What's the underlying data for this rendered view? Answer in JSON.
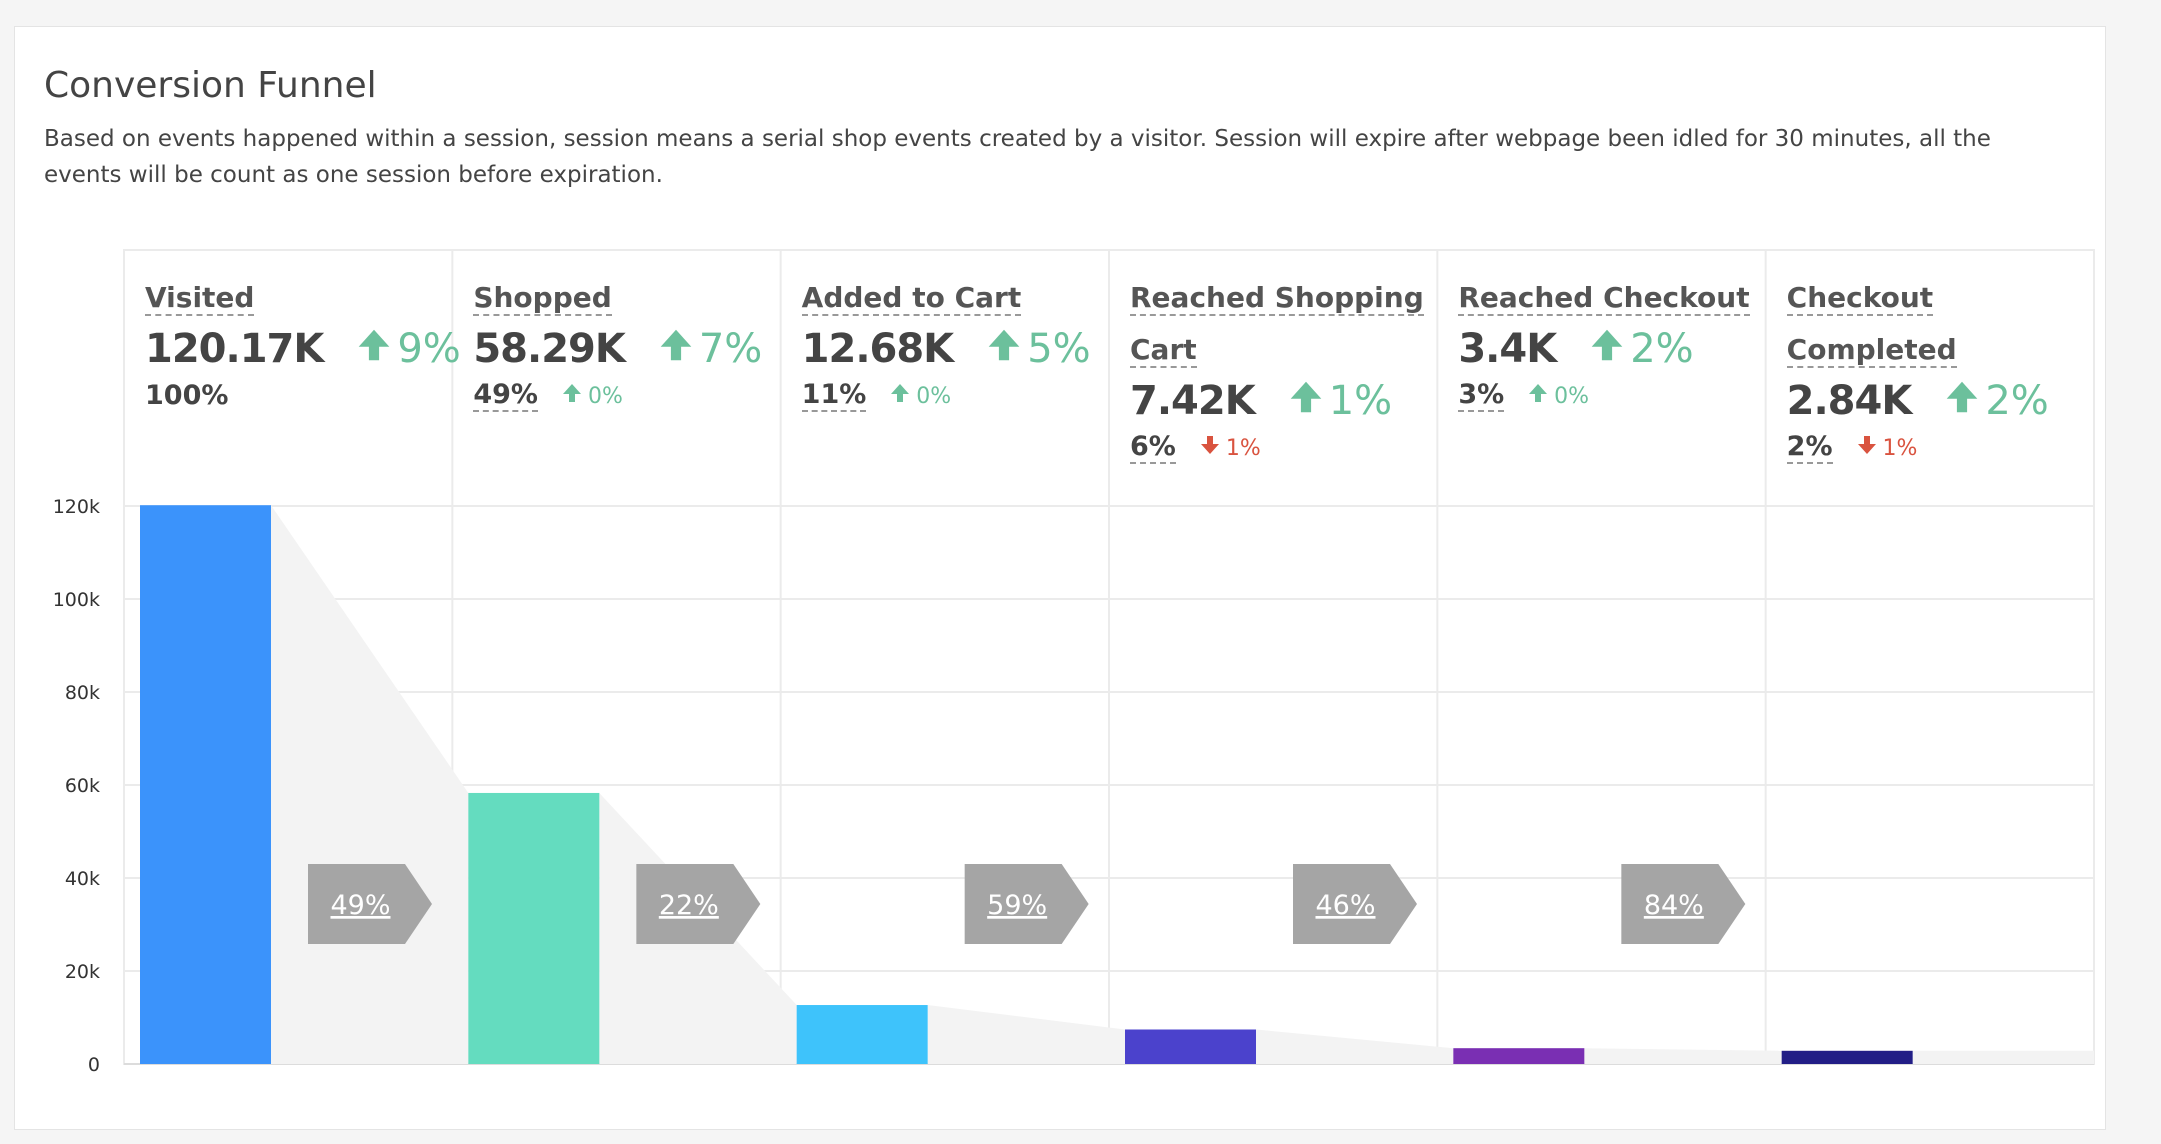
{
  "title": "Conversion Funnel",
  "description": "Based on events happened within a session, session means a serial shop events created by a visitor. Session will expire after webpage been idled for 30 minutes, all the events will be count as one session before expiration.",
  "colors": {
    "up": "#6cc09c",
    "down": "#d9533f",
    "arrow": "#a5a5a5",
    "funnel_fill": "#f3f3f3",
    "grid": "#ebebeb"
  },
  "stages": [
    {
      "label": "Visited",
      "value": "120.17K",
      "change": "9%",
      "pct": "100%",
      "pct_change": "",
      "pct_dir": ""
    },
    {
      "label": "Shopped",
      "value": "58.29K",
      "change": "7%",
      "pct": "49%",
      "pct_change": "0%",
      "pct_dir": "up"
    },
    {
      "label": "Added to Cart",
      "value": "12.68K",
      "change": "5%",
      "pct": "11%",
      "pct_change": "0%",
      "pct_dir": "up"
    },
    {
      "label": "Reached Shopping Cart",
      "value": "7.42K",
      "change": "1%",
      "pct": "6%",
      "pct_change": "1%",
      "pct_dir": "down"
    },
    {
      "label": "Reached Checkout",
      "value": "3.4K",
      "change": "2%",
      "pct": "3%",
      "pct_change": "0%",
      "pct_dir": "up"
    },
    {
      "label": "Checkout Completed",
      "value": "2.84K",
      "change": "2%",
      "pct": "2%",
      "pct_change": "1%",
      "pct_dir": "down"
    }
  ],
  "chart_data": {
    "type": "bar",
    "categories": [
      "Visited",
      "Shopped",
      "Added to Cart",
      "Reached Shopping Cart",
      "Reached Checkout",
      "Checkout Completed"
    ],
    "values": [
      120170,
      58290,
      12680,
      7420,
      3400,
      2840
    ],
    "colors": [
      "#3b93fb",
      "#64dcbf",
      "#3ec3fb",
      "#4b42cc",
      "#7a2fb3",
      "#221e86"
    ],
    "ylim": [
      0,
      120000
    ],
    "yticks": [
      0,
      20000,
      40000,
      60000,
      80000,
      100000,
      120000
    ],
    "ytick_labels": [
      "0",
      "20k",
      "40k",
      "60k",
      "80k",
      "100k",
      "120k"
    ],
    "step_conversion": [
      "49%",
      "22%",
      "59%",
      "46%",
      "84%"
    ],
    "grid": true
  }
}
